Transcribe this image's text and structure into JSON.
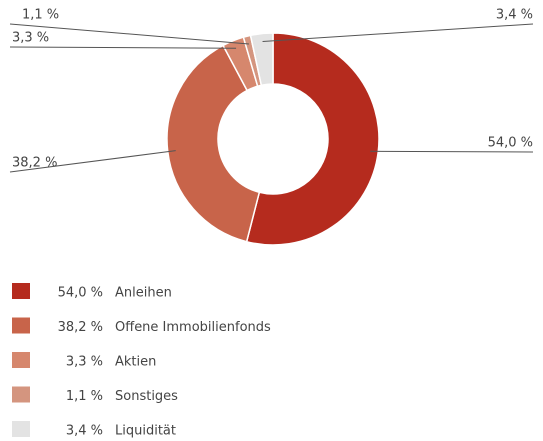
{
  "chart_data": {
    "type": "pie",
    "categories": [
      "Anleihen",
      "Offene Immobilienfonds",
      "Aktien",
      "Sonstiges",
      "Liquidität"
    ],
    "values": [
      54.0,
      38.2,
      3.3,
      1.1,
      3.4
    ],
    "value_labels": [
      "54,0 %",
      "38,2 %",
      "3,3 %",
      "1,1 %",
      "3,4 %"
    ],
    "colors": [
      "#b52b1e",
      "#c8644a",
      "#d6876d",
      "#d4957f",
      "#e3e3e3"
    ]
  }
}
